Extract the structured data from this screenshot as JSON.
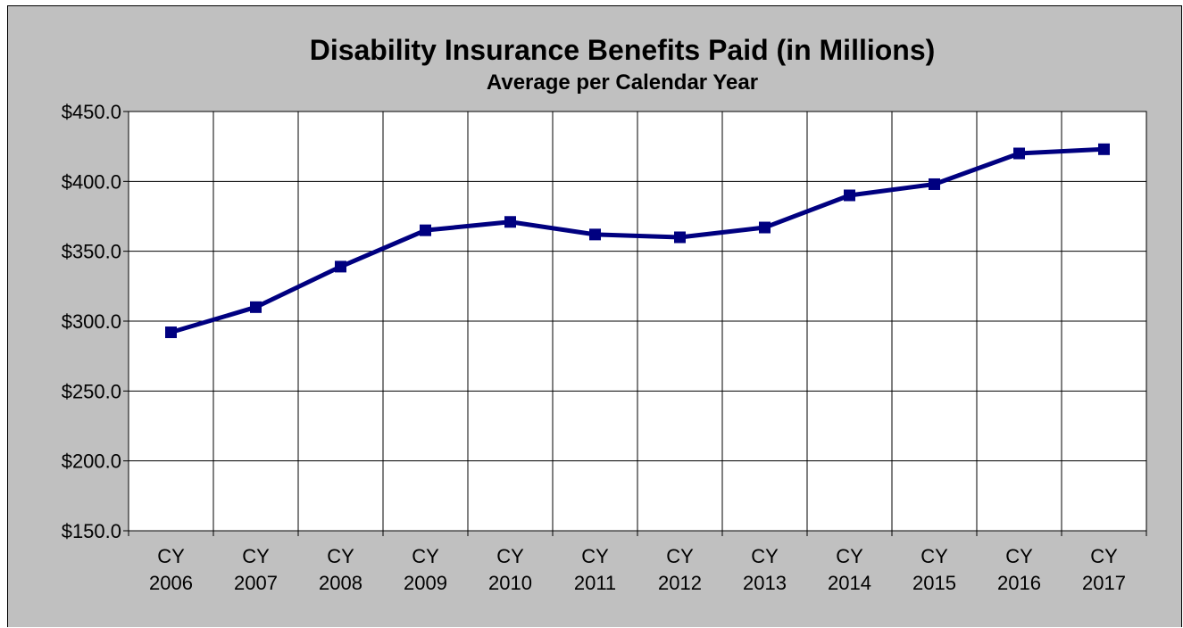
{
  "chart_data": {
    "type": "line",
    "title": "Disability Insurance Benefits Paid (in Millions)",
    "subtitle": "Average per Calendar Year",
    "xlabel": "",
    "ylabel": "",
    "categories": [
      [
        "CY",
        "2006"
      ],
      [
        "CY",
        "2007"
      ],
      [
        "CY",
        "2008"
      ],
      [
        "CY",
        "2009"
      ],
      [
        "CY",
        "2010"
      ],
      [
        "CY",
        "2011"
      ],
      [
        "CY",
        "2012"
      ],
      [
        "CY",
        "2013"
      ],
      [
        "CY",
        "2014"
      ],
      [
        "CY",
        "2015"
      ],
      [
        "CY",
        "2016"
      ],
      [
        "CY",
        "2017"
      ]
    ],
    "series": [
      {
        "values": [
          292,
          310,
          339,
          365,
          371,
          362,
          360,
          367,
          390,
          398,
          420,
          423
        ]
      }
    ],
    "ylim": [
      150,
      450
    ],
    "yticks": [
      "$150.0",
      "$200.0",
      "$250.0",
      "$300.0",
      "$350.0",
      "$400.0",
      "$450.0"
    ],
    "ytick_values": [
      150,
      200,
      250,
      300,
      350,
      400,
      450
    ],
    "grid": true,
    "legend": "none",
    "colors": {
      "series": "#000080",
      "plot_background": "#ffffff",
      "chart_background": "#c0c0c0",
      "gridlines": "#000000"
    }
  }
}
